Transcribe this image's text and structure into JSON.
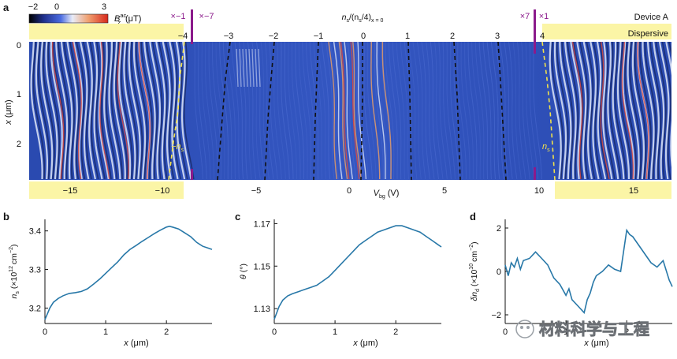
{
  "colors": {
    "heatmap_base": "#2b4fb8",
    "heatmap_dark": "#16245a",
    "fringe_light": "#dfe6f7",
    "fringe_red": "#e0483a",
    "fringe_orange": "#f0a060",
    "band_yellow": "#fbf5a6",
    "marker_purple": "#8b1a8b",
    "dashed_black": "#111111",
    "dashed_yellow": "#f2e24a",
    "curve": "#2878a8"
  },
  "panel_a": {
    "letter": "a",
    "colorbar": {
      "label": "B",
      "label_sup": "ac",
      "label_sub": "z",
      "units": "(μT)",
      "ticks": [
        "−2",
        "0",
        "3"
      ]
    },
    "device_label": "Device A",
    "dispersive_label": "Dispersive",
    "top_axis": {
      "label_main": "n",
      "label_sub1": "s",
      "label_rest": "/(n",
      "label_sub2": "s",
      "label_end": "/4)",
      "label_sub3": "x = 0",
      "ticks": [
        "−4",
        "−3",
        "−2",
        "−1",
        "0",
        "1",
        "2",
        "3",
        "4"
      ]
    },
    "multiplier_labels": [
      "×−1",
      "×−7",
      "×7",
      "×1"
    ],
    "left_axis": {
      "label": "x",
      "units": "(μm)",
      "ticks": [
        "0",
        "1",
        "2"
      ]
    },
    "bottom_axis": {
      "label": "V",
      "label_sub": "bg",
      "units": "(V)",
      "ticks": [
        "−15",
        "−10",
        "−5",
        "0",
        "5",
        "10",
        "15"
      ]
    },
    "annotations": {
      "neg_ns": "−n",
      "neg_ns_sub": "s",
      "pos_ns": "n",
      "pos_ns_sub": "s"
    }
  },
  "chart_data": [
    {
      "panel": "b",
      "type": "line",
      "xlabel": "x (μm)",
      "ylabel": "n_s (×10^12 cm^-2)",
      "ylabel_main": "n",
      "ylabel_sub": "s",
      "ylabel_units": "(×10",
      "ylabel_exp": "12",
      "ylabel_units2": "cm",
      "ylabel_exp2": "−2",
      "xlim": [
        0,
        2.75
      ],
      "ylim": [
        3.16,
        3.43
      ],
      "xticks": [
        0,
        1,
        2
      ],
      "xtick_labels": [
        "0",
        "1",
        "2"
      ],
      "yticks": [
        3.2,
        3.3,
        3.4
      ],
      "ytick_labels": [
        "3.2",
        "3.3",
        "3.4"
      ],
      "x": [
        0,
        0.04,
        0.08,
        0.14,
        0.22,
        0.3,
        0.4,
        0.5,
        0.6,
        0.7,
        0.8,
        0.9,
        1.0,
        1.1,
        1.2,
        1.3,
        1.4,
        1.5,
        1.6,
        1.7,
        1.8,
        1.9,
        2.0,
        2.05,
        2.1,
        2.2,
        2.3,
        2.4,
        2.5,
        2.6,
        2.7,
        2.75
      ],
      "y": [
        3.17,
        3.185,
        3.2,
        3.215,
        3.225,
        3.232,
        3.238,
        3.24,
        3.243,
        3.25,
        3.262,
        3.275,
        3.29,
        3.305,
        3.32,
        3.338,
        3.352,
        3.362,
        3.373,
        3.383,
        3.393,
        3.402,
        3.41,
        3.412,
        3.41,
        3.405,
        3.395,
        3.385,
        3.37,
        3.36,
        3.355,
        3.352
      ]
    },
    {
      "panel": "c",
      "type": "line",
      "xlabel": "x (μm)",
      "ylabel": "θ (°)",
      "ylabel_main": "θ",
      "ylabel_units": "(°)",
      "xlim": [
        0,
        2.75
      ],
      "ylim": [
        1.123,
        1.172
      ],
      "xticks": [
        0,
        1,
        2
      ],
      "xtick_labels": [
        "0",
        "1",
        "2"
      ],
      "yticks": [
        1.13,
        1.15,
        1.17
      ],
      "ytick_labels": [
        "1.13",
        "1.15",
        "1.17"
      ],
      "x": [
        0,
        0.04,
        0.08,
        0.14,
        0.22,
        0.3,
        0.4,
        0.5,
        0.6,
        0.7,
        0.8,
        0.9,
        1.0,
        1.1,
        1.2,
        1.3,
        1.4,
        1.5,
        1.6,
        1.7,
        1.8,
        1.9,
        2.0,
        2.05,
        2.1,
        2.2,
        2.3,
        2.4,
        2.5,
        2.6,
        2.7,
        2.75
      ],
      "y": [
        1.125,
        1.128,
        1.131,
        1.134,
        1.136,
        1.137,
        1.138,
        1.139,
        1.14,
        1.141,
        1.143,
        1.145,
        1.148,
        1.151,
        1.154,
        1.157,
        1.16,
        1.162,
        1.164,
        1.166,
        1.167,
        1.168,
        1.169,
        1.169,
        1.169,
        1.168,
        1.167,
        1.166,
        1.164,
        1.162,
        1.16,
        1.159
      ]
    },
    {
      "panel": "d",
      "type": "line",
      "xlabel": "x (μm)",
      "ylabel": "δn_d (×10^10 cm^-2)",
      "ylabel_main": "δn",
      "ylabel_sub": "d",
      "ylabel_units": "(×10",
      "ylabel_exp": "10",
      "ylabel_units2": "cm",
      "ylabel_exp2": "−2",
      "xlim": [
        0,
        2.75
      ],
      "ylim": [
        -2.4,
        2.4
      ],
      "xticks": [
        0,
        1,
        2
      ],
      "xtick_labels": [
        "0",
        "1",
        "2"
      ],
      "yticks": [
        -2,
        0,
        2
      ],
      "ytick_labels": [
        "−2",
        "0",
        "2"
      ],
      "x": [
        0,
        0.05,
        0.1,
        0.15,
        0.2,
        0.25,
        0.3,
        0.4,
        0.5,
        0.6,
        0.7,
        0.8,
        0.9,
        1.0,
        1.05,
        1.1,
        1.2,
        1.3,
        1.35,
        1.4,
        1.45,
        1.5,
        1.6,
        1.7,
        1.8,
        1.9,
        2.0,
        2.05,
        2.1,
        2.2,
        2.3,
        2.4,
        2.5,
        2.6,
        2.7,
        2.75
      ],
      "y": [
        0.3,
        -0.2,
        0.4,
        0.2,
        0.6,
        0.1,
        0.5,
        0.6,
        0.9,
        0.6,
        0.3,
        -0.3,
        -0.6,
        -1.1,
        -0.8,
        -1.3,
        -1.6,
        -1.9,
        -1.3,
        -1.0,
        -0.5,
        -0.2,
        0.0,
        0.3,
        0.1,
        0.0,
        1.9,
        1.7,
        1.6,
        1.2,
        0.8,
        0.4,
        0.2,
        0.5,
        -0.4,
        -0.7
      ]
    }
  ],
  "watermark": {
    "text": "材料科学与工程"
  }
}
